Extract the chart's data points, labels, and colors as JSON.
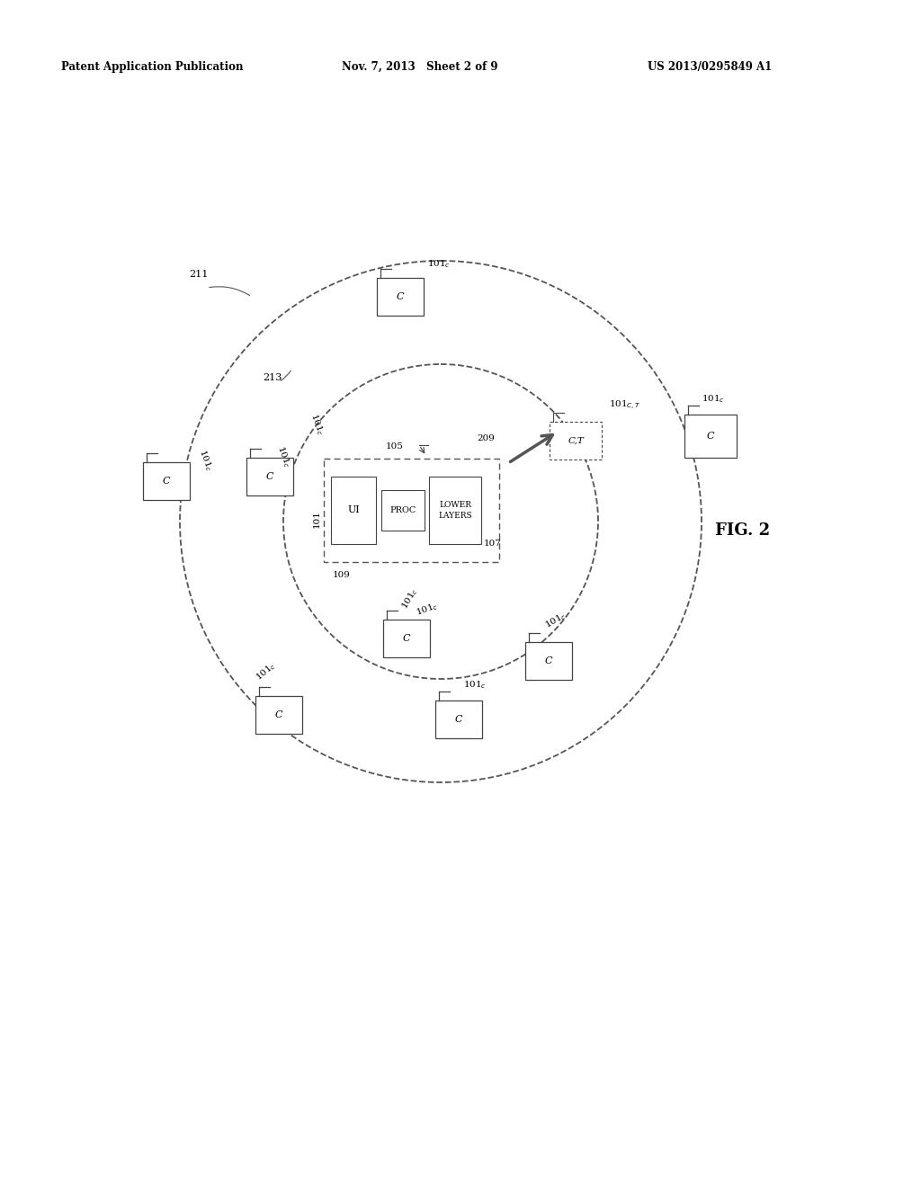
{
  "title_left": "Patent Application Publication",
  "title_mid": "Nov. 7, 2013   Sheet 2 of 9",
  "title_right": "US 2013/0295849 A1",
  "fig_label": "FIG. 2",
  "background_color": "#ffffff",
  "line_color": "#555555"
}
